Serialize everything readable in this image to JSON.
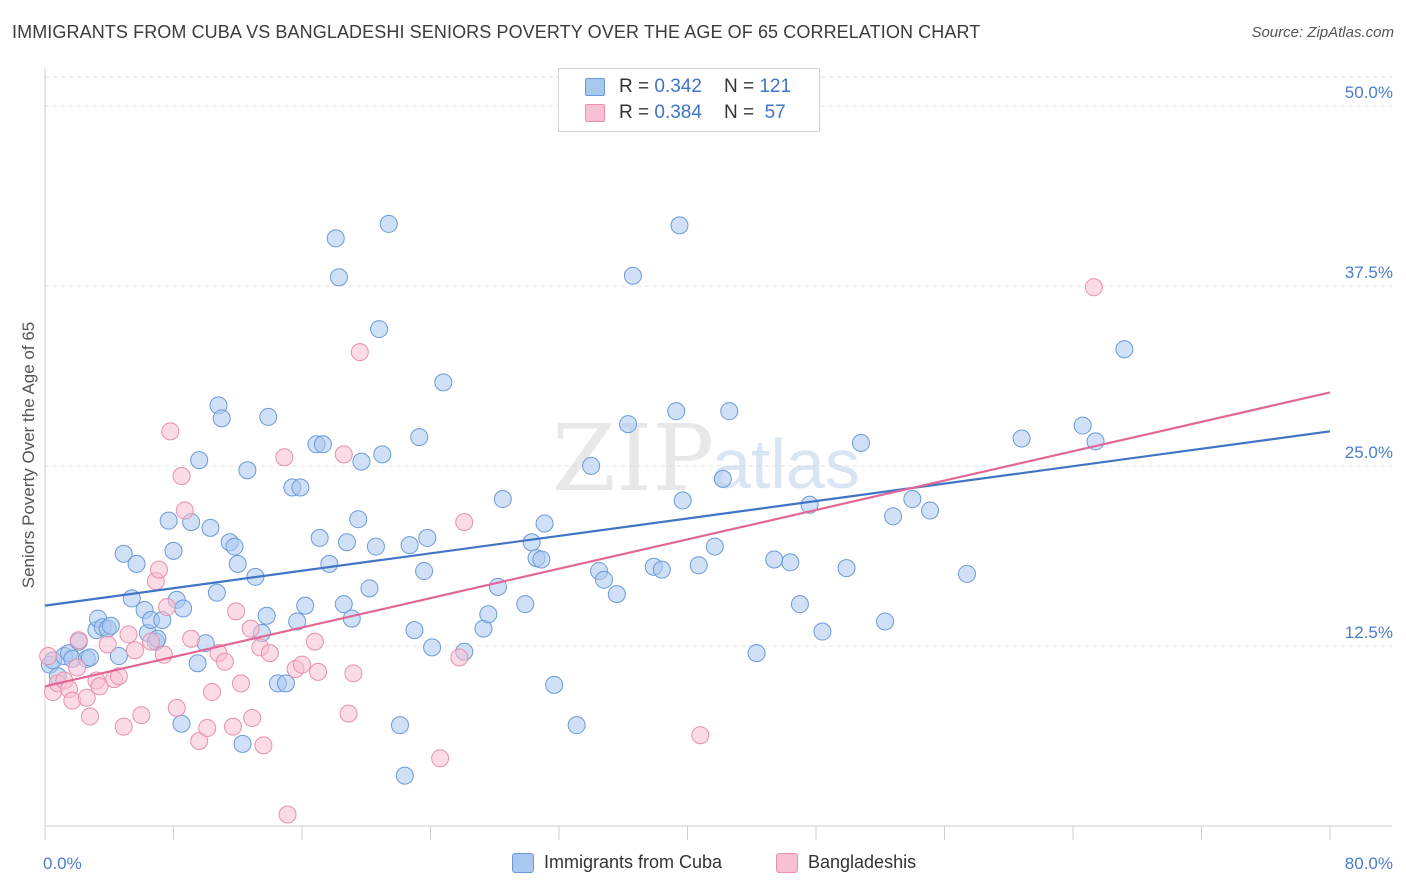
{
  "title": "IMMIGRANTS FROM CUBA VS BANGLADESHI SENIORS POVERTY OVER THE AGE OF 65 CORRELATION CHART",
  "source": "Source: ZipAtlas.com",
  "watermark": {
    "zip": "ZIP",
    "atlas": "atlas"
  },
  "legend": {
    "rows": [
      {
        "r_label": "R =",
        "r_value": "0.342",
        "n_label": "N =",
        "n_value": "121",
        "color": "#a9c8f0"
      },
      {
        "r_label": "R =",
        "r_value": "0.384",
        "n_label": "N =",
        "n_value": "57",
        "color": "#f8b8cc"
      }
    ]
  },
  "bottom_legend": {
    "series1": "Immigrants from Cuba",
    "series2": "Bangladeshis"
  },
  "chart_data": {
    "type": "scatter",
    "ylabel": "Seniors Poverty Over the Age of 65",
    "xlabel": "",
    "xlim": [
      0,
      80
    ],
    "ylim": [
      0,
      52
    ],
    "x_ticks": [
      "0.0%",
      "80.0%"
    ],
    "y_ticks": [
      {
        "value": 12.5,
        "label": "12.5%"
      },
      {
        "value": 25.0,
        "label": "25.0%"
      },
      {
        "value": 37.5,
        "label": "37.5%"
      },
      {
        "value": 50.0,
        "label": "50.0%"
      }
    ],
    "grid": true,
    "legend_position": "top-center",
    "colors": {
      "cuba_fill": "#a9c8f0",
      "cuba_stroke": "#6b9ad8",
      "cuba_line": "#3f74c6",
      "bang_fill": "#f8c0d2",
      "bang_stroke": "#e890ac",
      "bang_line": "#e06896"
    },
    "series": [
      {
        "name": "Immigrants from Cuba",
        "trend": [
          [
            0,
            15.3
          ],
          [
            80,
            27.4
          ]
        ],
        "points": [
          [
            0.3,
            11.2
          ],
          [
            0.5,
            11.5
          ],
          [
            0.8,
            10.4
          ],
          [
            1.2,
            11.8
          ],
          [
            1.5,
            12.0
          ],
          [
            1.7,
            11.6
          ],
          [
            2.1,
            12.8
          ],
          [
            2.6,
            11.6
          ],
          [
            2.8,
            11.7
          ],
          [
            3.2,
            13.6
          ],
          [
            3.3,
            14.4
          ],
          [
            3.6,
            13.8
          ],
          [
            3.9,
            13.7
          ],
          [
            4.1,
            13.9
          ],
          [
            4.6,
            11.8
          ],
          [
            4.9,
            18.9
          ],
          [
            5.4,
            15.8
          ],
          [
            5.7,
            18.2
          ],
          [
            6.2,
            15.0
          ],
          [
            6.4,
            13.4
          ],
          [
            6.6,
            14.3
          ],
          [
            6.9,
            12.8
          ],
          [
            7.0,
            13.0
          ],
          [
            7.3,
            14.3
          ],
          [
            7.7,
            21.2
          ],
          [
            8.0,
            19.1
          ],
          [
            8.2,
            15.7
          ],
          [
            8.5,
            7.1
          ],
          [
            8.6,
            15.1
          ],
          [
            9.1,
            21.1
          ],
          [
            9.5,
            11.3
          ],
          [
            9.6,
            25.4
          ],
          [
            10.0,
            12.7
          ],
          [
            10.3,
            20.7
          ],
          [
            10.7,
            16.2
          ],
          [
            10.8,
            29.2
          ],
          [
            11.0,
            28.3
          ],
          [
            11.5,
            19.7
          ],
          [
            11.8,
            19.4
          ],
          [
            12.0,
            18.2
          ],
          [
            12.3,
            5.7
          ],
          [
            12.6,
            24.7
          ],
          [
            13.1,
            17.3
          ],
          [
            13.5,
            13.4
          ],
          [
            13.8,
            14.6
          ],
          [
            13.9,
            28.4
          ],
          [
            14.5,
            9.9
          ],
          [
            15.0,
            9.9
          ],
          [
            15.4,
            23.5
          ],
          [
            15.7,
            14.2
          ],
          [
            15.9,
            23.5
          ],
          [
            16.2,
            15.3
          ],
          [
            16.9,
            26.5
          ],
          [
            17.1,
            20.0
          ],
          [
            17.3,
            26.5
          ],
          [
            17.7,
            18.2
          ],
          [
            18.1,
            40.8
          ],
          [
            18.3,
            38.1
          ],
          [
            18.6,
            15.4
          ],
          [
            18.8,
            19.7
          ],
          [
            19.1,
            14.4
          ],
          [
            19.5,
            21.3
          ],
          [
            19.7,
            25.3
          ],
          [
            20.2,
            16.5
          ],
          [
            20.6,
            19.4
          ],
          [
            20.8,
            34.5
          ],
          [
            21.0,
            25.8
          ],
          [
            21.4,
            41.8
          ],
          [
            22.1,
            7.0
          ],
          [
            22.4,
            3.5
          ],
          [
            22.7,
            19.5
          ],
          [
            23.0,
            13.6
          ],
          [
            23.3,
            27.0
          ],
          [
            23.6,
            17.7
          ],
          [
            23.8,
            20.0
          ],
          [
            24.1,
            12.4
          ],
          [
            24.8,
            30.8
          ],
          [
            26.1,
            12.1
          ],
          [
            27.3,
            13.7
          ],
          [
            27.6,
            14.7
          ],
          [
            28.2,
            16.6
          ],
          [
            28.5,
            22.7
          ],
          [
            29.9,
            15.4
          ],
          [
            30.3,
            19.7
          ],
          [
            30.6,
            18.6
          ],
          [
            30.9,
            18.5
          ],
          [
            31.1,
            21.0
          ],
          [
            31.7,
            9.8
          ],
          [
            33.1,
            7.0
          ],
          [
            34.0,
            25.0
          ],
          [
            34.5,
            17.7
          ],
          [
            34.8,
            17.1
          ],
          [
            35.6,
            16.1
          ],
          [
            36.3,
            27.9
          ],
          [
            36.6,
            38.2
          ],
          [
            37.9,
            18.0
          ],
          [
            38.4,
            17.8
          ],
          [
            39.3,
            28.8
          ],
          [
            39.5,
            41.7
          ],
          [
            39.7,
            22.6
          ],
          [
            40.7,
            18.1
          ],
          [
            41.7,
            19.4
          ],
          [
            42.2,
            24.1
          ],
          [
            42.6,
            28.8
          ],
          [
            44.3,
            12.0
          ],
          [
            45.4,
            18.5
          ],
          [
            46.4,
            18.3
          ],
          [
            47.0,
            15.4
          ],
          [
            47.6,
            22.3
          ],
          [
            48.4,
            13.5
          ],
          [
            49.9,
            17.9
          ],
          [
            50.8,
            26.6
          ],
          [
            52.3,
            14.2
          ],
          [
            52.8,
            21.5
          ],
          [
            54.0,
            22.7
          ],
          [
            55.1,
            21.9
          ],
          [
            57.4,
            17.5
          ],
          [
            60.8,
            26.9
          ],
          [
            64.6,
            27.8
          ],
          [
            65.4,
            26.7
          ],
          [
            67.2,
            33.1
          ]
        ]
      },
      {
        "name": "Bangladeshis",
        "trend": [
          [
            0,
            9.7
          ],
          [
            80,
            30.1
          ]
        ],
        "points": [
          [
            0.2,
            11.8
          ],
          [
            0.5,
            9.3
          ],
          [
            0.8,
            9.9
          ],
          [
            1.2,
            10.1
          ],
          [
            1.5,
            9.5
          ],
          [
            1.7,
            8.7
          ],
          [
            2.0,
            11.0
          ],
          [
            2.1,
            12.9
          ],
          [
            2.6,
            8.9
          ],
          [
            2.8,
            7.6
          ],
          [
            3.2,
            10.1
          ],
          [
            3.4,
            9.7
          ],
          [
            3.9,
            12.6
          ],
          [
            4.3,
            10.2
          ],
          [
            4.6,
            10.4
          ],
          [
            4.9,
            6.9
          ],
          [
            5.2,
            13.3
          ],
          [
            5.6,
            12.2
          ],
          [
            6.0,
            7.7
          ],
          [
            6.6,
            12.8
          ],
          [
            6.9,
            17.0
          ],
          [
            7.1,
            17.8
          ],
          [
            7.4,
            11.9
          ],
          [
            7.6,
            15.2
          ],
          [
            7.8,
            27.4
          ],
          [
            8.2,
            8.2
          ],
          [
            8.5,
            24.3
          ],
          [
            8.7,
            21.9
          ],
          [
            9.1,
            13.0
          ],
          [
            9.6,
            5.9
          ],
          [
            10.1,
            6.8
          ],
          [
            10.4,
            9.3
          ],
          [
            10.8,
            12.0
          ],
          [
            11.2,
            11.4
          ],
          [
            11.7,
            6.9
          ],
          [
            11.9,
            14.9
          ],
          [
            12.2,
            9.9
          ],
          [
            12.8,
            13.7
          ],
          [
            12.9,
            7.5
          ],
          [
            13.4,
            12.4
          ],
          [
            13.6,
            5.6
          ],
          [
            14.0,
            12.0
          ],
          [
            14.9,
            25.6
          ],
          [
            15.1,
            0.8
          ],
          [
            15.6,
            10.9
          ],
          [
            16.0,
            11.2
          ],
          [
            16.8,
            12.8
          ],
          [
            17.0,
            10.7
          ],
          [
            18.6,
            25.8
          ],
          [
            18.9,
            7.8
          ],
          [
            19.2,
            10.6
          ],
          [
            19.6,
            32.9
          ],
          [
            24.6,
            4.7
          ],
          [
            25.8,
            11.7
          ],
          [
            26.1,
            21.1
          ],
          [
            40.8,
            6.3
          ],
          [
            65.3,
            37.4
          ]
        ]
      }
    ]
  }
}
